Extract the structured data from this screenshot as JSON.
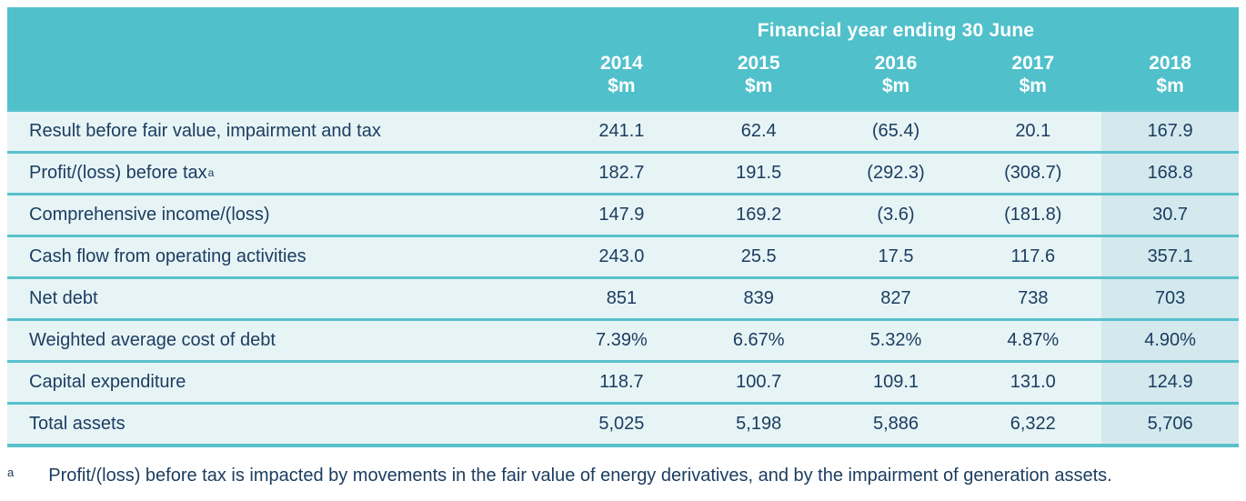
{
  "table": {
    "header": {
      "title": "Financial year ending 30 June",
      "unit_label": "$m",
      "years": [
        "2014",
        "2015",
        "2016",
        "2017",
        "2018"
      ]
    },
    "rows": [
      {
        "label": "Result before fair value, impairment and tax",
        "sup": "",
        "values": [
          "241.1",
          "62.4",
          "(65.4)",
          "20.1",
          "167.9"
        ]
      },
      {
        "label": "Profit/(loss) before tax",
        "sup": "a",
        "values": [
          "182.7",
          "191.5",
          "(292.3)",
          "(308.7)",
          "168.8"
        ]
      },
      {
        "label": "Comprehensive income/(loss)",
        "sup": "",
        "values": [
          "147.9",
          "169.2",
          "(3.6)",
          "(181.8)",
          "30.7"
        ]
      },
      {
        "label": "Cash flow from operating activities",
        "sup": "",
        "values": [
          "243.0",
          "25.5",
          "17.5",
          "117.6",
          "357.1"
        ]
      },
      {
        "label": "Net debt",
        "sup": "",
        "values": [
          "851",
          "839",
          "827",
          "738",
          "703"
        ]
      },
      {
        "label": "Weighted average cost of debt",
        "sup": "",
        "values": [
          "7.39%",
          "6.67%",
          "5.32%",
          "4.87%",
          "4.90%"
        ]
      },
      {
        "label": "Capital expenditure",
        "sup": "",
        "values": [
          "118.7",
          "100.7",
          "109.1",
          "131.0",
          "124.9"
        ]
      },
      {
        "label": "Total assets",
        "sup": "",
        "values": [
          "5,025",
          "5,198",
          "5,886",
          "6,322",
          "5,706"
        ]
      }
    ],
    "footnote": {
      "marker": "a",
      "text": "Profit/(loss) before tax is impacted by movements in the fair value of energy derivatives, and by the impairment of generation assets."
    },
    "highlight_year": "2018"
  },
  "colors": {
    "header_bg": "#50C0CB",
    "row_bg": "#E7F4F6",
    "highlight_column_bg": "#D3E9EE",
    "separator": "#58C1CC",
    "text": "#1C3D60"
  }
}
